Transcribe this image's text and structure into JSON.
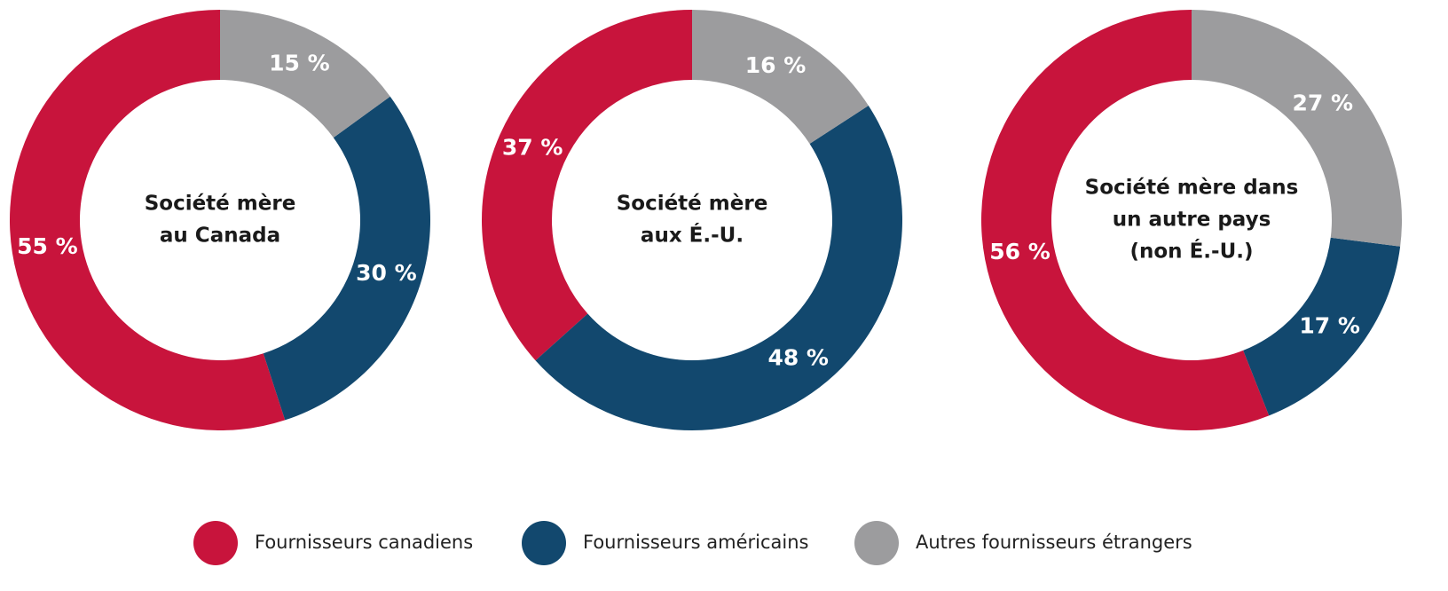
{
  "chart_data": [
    {
      "type": "donut",
      "title_lines": [
        "Société mère",
        "au Canada"
      ],
      "values": [
        55,
        30,
        15
      ],
      "value_labels": [
        "55 %",
        "30 %",
        "15 %"
      ]
    },
    {
      "type": "donut",
      "title_lines": [
        "Société mère",
        "aux É.-U."
      ],
      "values": [
        37,
        48,
        16
      ],
      "value_labels": [
        "37 %",
        "48 %",
        "16 %"
      ]
    },
    {
      "type": "donut",
      "title_lines": [
        "Société mère dans",
        "un autre pays",
        "(non É.-U.)"
      ],
      "values": [
        56,
        17,
        27
      ],
      "value_labels": [
        "56 %",
        "17 %",
        "27 %"
      ]
    }
  ],
  "legend": {
    "items": [
      "Fournisseurs canadiens",
      "Fournisseurs américains",
      "Autres fournisseurs étrangers"
    ],
    "colors": [
      "#c8143c",
      "#12486e",
      "#9c9c9e"
    ]
  }
}
